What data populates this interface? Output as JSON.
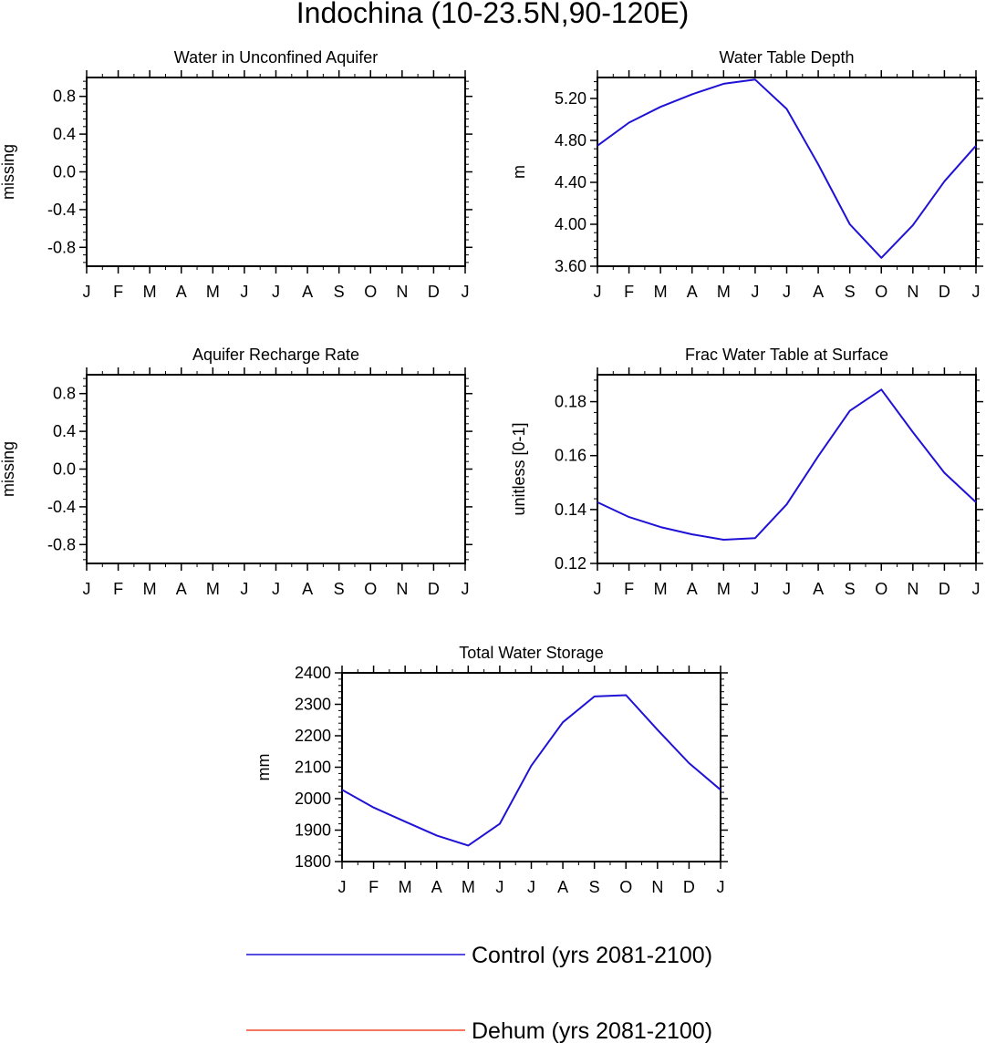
{
  "figure": {
    "title": "Indochina (10-23.5N,90-120E)",
    "legend": [
      {
        "label": "Control (yrs 2081-2100)",
        "color": "#1f12d6"
      },
      {
        "label": "Dehum (yrs 2081-2100)",
        "color": "#f04a2c"
      }
    ]
  },
  "chart_data": [
    {
      "type": "line",
      "title": "Water in Unconfined Aquifer",
      "xlabel": "",
      "ylabel": "missing",
      "x_ticks": [
        "J",
        "F",
        "M",
        "A",
        "M",
        "J",
        "J",
        "A",
        "S",
        "O",
        "N",
        "D",
        "J"
      ],
      "ylim": [
        -1.0,
        1.0
      ],
      "y_ticks": [
        -0.8,
        -0.4,
        0.0,
        0.4,
        0.8
      ],
      "y_tick_labels": [
        "-0.8",
        "-0.4",
        "0.0",
        "0.4",
        "0.8"
      ],
      "series": []
    },
    {
      "type": "line",
      "title": "Water Table Depth",
      "xlabel": "",
      "ylabel": "m",
      "x_ticks": [
        "J",
        "F",
        "M",
        "A",
        "M",
        "J",
        "J",
        "A",
        "S",
        "O",
        "N",
        "D",
        "J"
      ],
      "ylim": [
        3.6,
        5.4
      ],
      "y_ticks": [
        3.6,
        4.0,
        4.4,
        4.8,
        5.2
      ],
      "y_tick_labels": [
        "3.60",
        "4.00",
        "4.40",
        "4.80",
        "5.20"
      ],
      "series": [
        {
          "name": "Control (yrs 2081-2100)",
          "color": "#1f12d6",
          "values": [
            4.75,
            4.97,
            5.12,
            5.24,
            5.34,
            5.38,
            5.1,
            4.57,
            4.0,
            3.68,
            3.99,
            4.41,
            4.75
          ]
        }
      ]
    },
    {
      "type": "line",
      "title": "Aquifer Recharge Rate",
      "xlabel": "",
      "ylabel": "missing",
      "x_ticks": [
        "J",
        "F",
        "M",
        "A",
        "M",
        "J",
        "J",
        "A",
        "S",
        "O",
        "N",
        "D",
        "J"
      ],
      "ylim": [
        -1.0,
        1.0
      ],
      "y_ticks": [
        -0.8,
        -0.4,
        0.0,
        0.4,
        0.8
      ],
      "y_tick_labels": [
        "-0.8",
        "-0.4",
        "0.0",
        "0.4",
        "0.8"
      ],
      "series": []
    },
    {
      "type": "line",
      "title": "Frac Water Table at Surface",
      "xlabel": "",
      "ylabel": "unitless [0-1]",
      "x_ticks": [
        "J",
        "F",
        "M",
        "A",
        "M",
        "J",
        "J",
        "A",
        "S",
        "O",
        "N",
        "D",
        "J"
      ],
      "ylim": [
        0.12,
        0.19
      ],
      "y_ticks": [
        0.12,
        0.14,
        0.16,
        0.18
      ],
      "y_tick_labels": [
        "0.12",
        "0.14",
        "0.16",
        "0.18"
      ],
      "series": [
        {
          "name": "Control (yrs 2081-2100)",
          "color": "#1f12d6",
          "values": [
            0.1427,
            0.1372,
            0.1335,
            0.1308,
            0.1288,
            0.1294,
            0.1419,
            0.1598,
            0.1766,
            0.1845,
            0.1687,
            0.1536,
            0.1427
          ]
        }
      ]
    },
    {
      "type": "line",
      "title": "Total Water Storage",
      "xlabel": "",
      "ylabel": "mm",
      "x_ticks": [
        "J",
        "F",
        "M",
        "A",
        "M",
        "J",
        "J",
        "A",
        "S",
        "O",
        "N",
        "D",
        "J"
      ],
      "ylim": [
        1800,
        2400
      ],
      "y_ticks": [
        1800,
        1900,
        2000,
        2100,
        2200,
        2300,
        2400
      ],
      "y_tick_labels": [
        "1800",
        "1900",
        "2000",
        "2100",
        "2200",
        "2300",
        "2400"
      ],
      "series": [
        {
          "name": "Control (yrs 2081-2100)",
          "color": "#1f12d6",
          "values": [
            2028,
            1972,
            1927,
            1883,
            1851,
            1920,
            2105,
            2243,
            2325,
            2329,
            2219,
            2113,
            2028
          ]
        }
      ]
    }
  ]
}
